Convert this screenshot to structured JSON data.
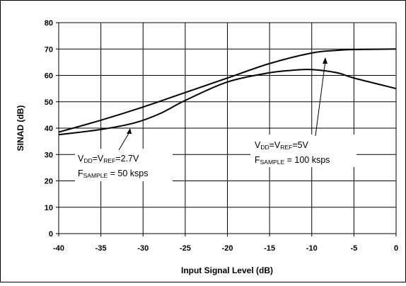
{
  "chart_data": {
    "type": "line",
    "title": "",
    "xlabel": "Input Signal Level (dB)",
    "ylabel": "SINAD (dB)",
    "xlim": [
      -40,
      0
    ],
    "ylim": [
      0,
      80
    ],
    "xticks": [
      "-40",
      "-35",
      "-30",
      "-25",
      "-20",
      "-15",
      "-10",
      "-5",
      "0"
    ],
    "yticks": [
      "0",
      "10",
      "20",
      "30",
      "40",
      "50",
      "60",
      "70",
      "80"
    ],
    "grid": true,
    "legend": "none",
    "colors": {
      "line": "#000000",
      "grid": "#000000",
      "frame": "#000000"
    },
    "series": [
      {
        "x": [
          -40,
          -35,
          -30,
          -25,
          -20,
          -15,
          -10,
          -7,
          -5,
          0
        ],
        "y": [
          38.5,
          43,
          48,
          53.5,
          59,
          64.5,
          68.5,
          69.5,
          69.8,
          70
        ]
      },
      {
        "x": [
          -40,
          -35,
          -31,
          -28,
          -25,
          -20,
          -15,
          -12,
          -10,
          -7,
          -5,
          0
        ],
        "y": [
          37.5,
          39.5,
          42,
          45.5,
          50.5,
          57.5,
          61,
          62,
          62.2,
          61,
          59,
          55
        ]
      }
    ],
    "annotations": [
      {
        "id": "a1",
        "line1": {
          "main": "V",
          "sub1": "DD",
          "mid": "=V",
          "sub2": "REF",
          "rest": "=2.7V"
        },
        "line2": {
          "main": "F",
          "sub": "SAMPLE",
          "rest": " = 50 ksps"
        }
      },
      {
        "id": "a2",
        "line1": {
          "main": "V",
          "sub1": "DD",
          "mid": "=V",
          "sub2": "REF",
          "rest": "=5V"
        },
        "line2": {
          "main": "F",
          "sub": "SAMPLE",
          "rest": " = 100 ksps"
        }
      }
    ]
  }
}
